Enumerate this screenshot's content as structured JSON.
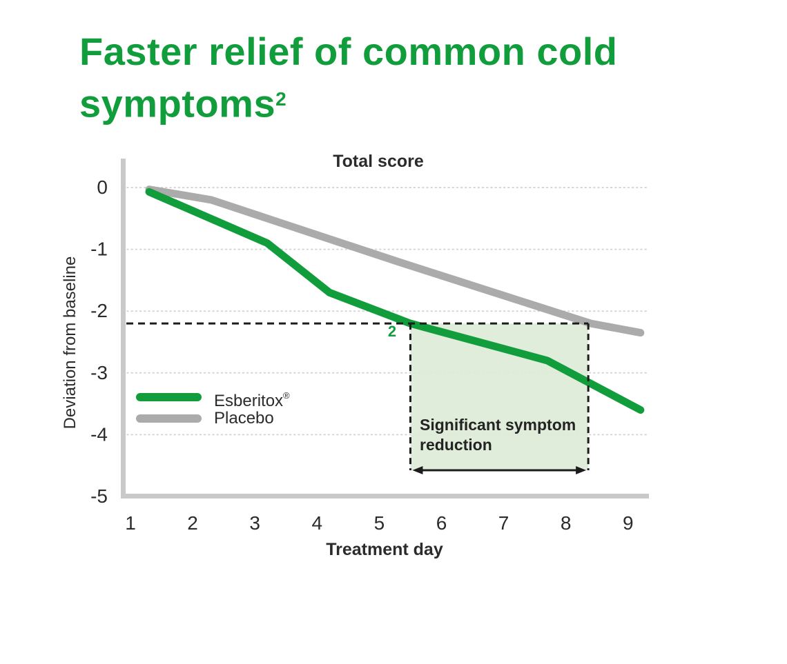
{
  "page": {
    "background": "#ffffff"
  },
  "colors": {
    "brand_green": "#129D3C",
    "placebo_gray": "#ABABAB",
    "axis_bar_gray": "#C9C9C9",
    "gridline_gray": "#D6D6D6",
    "dash_black": "#1C1C1C",
    "region_fill": "#DEECD8",
    "text_dark": "#2B2B2B"
  },
  "title": {
    "line1": "Faster relief of common cold",
    "line2": "symptoms",
    "superscript": "2"
  },
  "legend": {
    "items": [
      {
        "label": "Esberitox",
        "mark": "®",
        "color": "#129D3C"
      },
      {
        "label": "Placebo",
        "mark": "",
        "color": "#ABABAB"
      }
    ]
  },
  "chart_data": {
    "type": "line",
    "title": "Total score",
    "xlabel": "Treatment day",
    "ylabel": "Deviation from baseline",
    "xticks": [
      1,
      2,
      3,
      4,
      5,
      6,
      7,
      8,
      9
    ],
    "yticks": [
      0,
      -1,
      -2,
      -3,
      -4,
      -5
    ],
    "xlim": [
      0.85,
      9.55
    ],
    "ylim": [
      -5,
      0.45
    ],
    "grid": "horizontal-dotted",
    "legend_position": "inside-left",
    "series": [
      {
        "name": "Esberitox®",
        "key": "esberitox",
        "color": "#129D3C",
        "points": [
          [
            1.3,
            -0.07
          ],
          [
            3.2,
            -0.9
          ],
          [
            4.2,
            -1.7
          ],
          [
            5.5,
            -2.2
          ],
          [
            7.7,
            -2.8
          ],
          [
            9.2,
            -3.6
          ]
        ]
      },
      {
        "name": "Placebo",
        "key": "placebo",
        "color": "#ABABAB",
        "points": [
          [
            1.3,
            -0.03
          ],
          [
            2.3,
            -0.2
          ],
          [
            5.3,
            -1.2
          ],
          [
            8.4,
            -2.2
          ],
          [
            9.2,
            -2.35
          ]
        ]
      }
    ],
    "annotations": {
      "threshold_line": {
        "value": -2.2,
        "style": "dashed"
      },
      "reference_marker": {
        "text": "2",
        "day": 5.2,
        "value": -2.35
      },
      "region": {
        "from_day": 5.5,
        "to_day": 8.36,
        "top_value": -2.2,
        "label": "Significant symptom reduction",
        "fill": "#DEECD8"
      }
    }
  }
}
